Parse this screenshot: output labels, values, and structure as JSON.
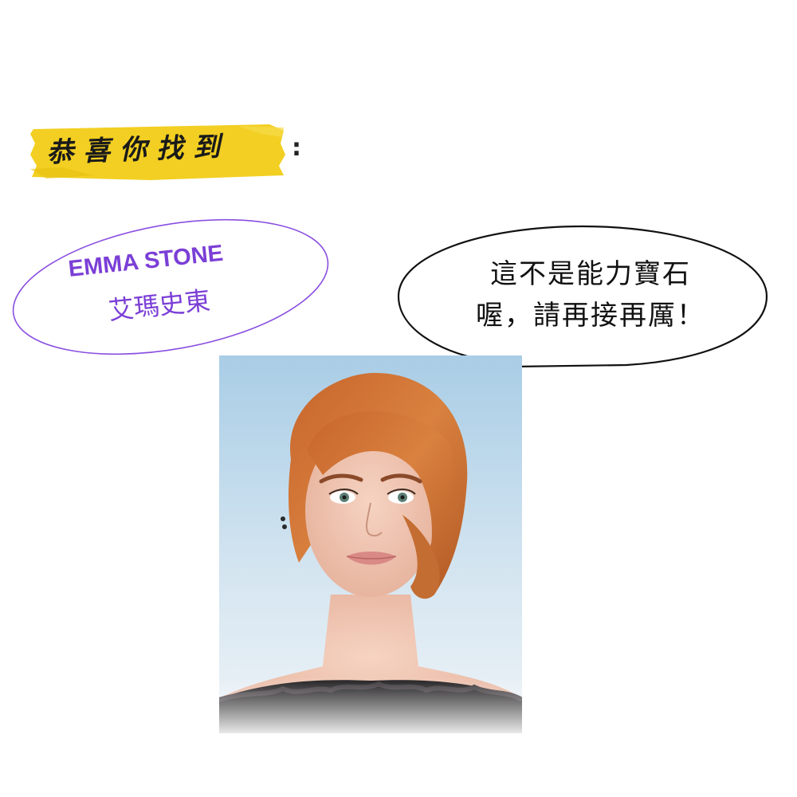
{
  "banner": {
    "title": "恭喜你找到",
    "colon": ":",
    "highlight_color": "#f2cf22"
  },
  "name_badge": {
    "name_en": "EMMA STONE",
    "name_zh": "艾瑪史東",
    "color": "#7b3fd6"
  },
  "speech_bubble": {
    "line1": "這不是能力寶石",
    "line2": "喔，請再接再厲！"
  },
  "photo": {
    "subject": "portrait-photo"
  }
}
